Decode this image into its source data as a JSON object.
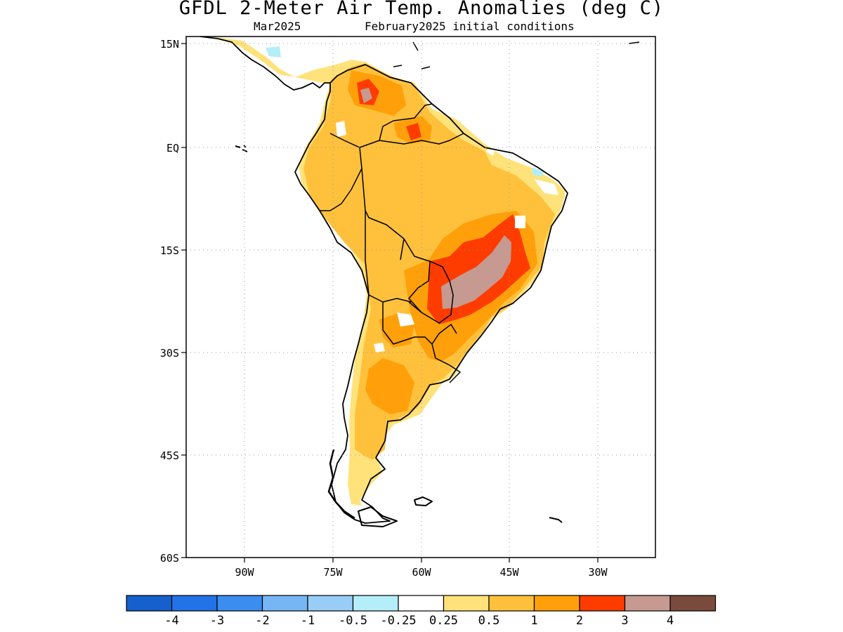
{
  "header": {
    "title": "GFDL 2-Meter Air Temp. Anomalies (deg C)",
    "month": "Mar2025",
    "initial": "February2025 initial conditions"
  },
  "axes": {
    "lat_labels": [
      "15N",
      "EQ",
      "15S",
      "30S",
      "45S",
      "60S"
    ],
    "lon_labels": [
      "90W",
      "75W",
      "60W",
      "45W",
      "30W"
    ]
  },
  "colorbar": {
    "labels": [
      "-4",
      "-3",
      "-2",
      "-1",
      "-0.5",
      "-0.25",
      "0.25",
      "0.5",
      "1",
      "2",
      "3",
      "4"
    ],
    "colors": [
      "#1560cc",
      "#2272e8",
      "#3b8df0",
      "#76b6f4",
      "#97cdf6",
      "#b4eef8",
      "#ffffff",
      "#ffe27a",
      "#ffc13c",
      "#ffa00a",
      "#ff3c00",
      "#c69a90",
      "#7a4b3c"
    ]
  }
}
